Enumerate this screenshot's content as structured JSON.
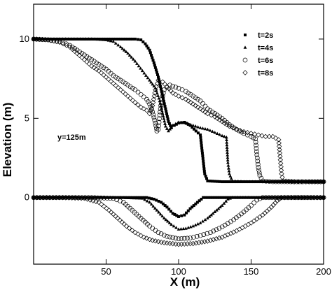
{
  "chart_data": {
    "type": "scatter",
    "xlabel": "X (m)",
    "ylabel": "Elevation (m)",
    "xlim": [
      0,
      200
    ],
    "ylim": [
      -4.2,
      12.2
    ],
    "xticks": [
      50,
      100,
      150,
      200
    ],
    "yticks": [
      0,
      5,
      10
    ],
    "grid": false,
    "legend_position": "top-right",
    "annotation": "y=125m",
    "series": [
      {
        "name": "t=2s",
        "marker": "square",
        "surface": [
          [
            0,
            10
          ],
          [
            10,
            10
          ],
          [
            20,
            10
          ],
          [
            30,
            10
          ],
          [
            40,
            10
          ],
          [
            50,
            10
          ],
          [
            60,
            10
          ],
          [
            70,
            10
          ],
          [
            74,
            9.95
          ],
          [
            77,
            9.7
          ],
          [
            80,
            9.3
          ],
          [
            83,
            8.5
          ],
          [
            86,
            7.6
          ],
          [
            89,
            6.4
          ],
          [
            91,
            5.6
          ],
          [
            93,
            4.8
          ],
          [
            95,
            4.4
          ],
          [
            97,
            4.55
          ],
          [
            100,
            4.7
          ],
          [
            104,
            4.75
          ],
          [
            108,
            4.55
          ],
          [
            112,
            4.2
          ],
          [
            115,
            3.95
          ],
          [
            117,
            2.3
          ],
          [
            118,
            1.5
          ],
          [
            120,
            1.05
          ],
          [
            130,
            1
          ],
          [
            140,
            1
          ],
          [
            150,
            1
          ],
          [
            160,
            1
          ],
          [
            170,
            1
          ],
          [
            180,
            1
          ],
          [
            190,
            1
          ],
          [
            200,
            1
          ]
        ],
        "bed": [
          [
            0,
            0
          ],
          [
            10,
            0
          ],
          [
            20,
            0
          ],
          [
            30,
            0
          ],
          [
            40,
            0
          ],
          [
            50,
            0
          ],
          [
            60,
            0
          ],
          [
            70,
            0
          ],
          [
            78,
            0
          ],
          [
            83,
            -0.1
          ],
          [
            88,
            -0.3
          ],
          [
            92,
            -0.6
          ],
          [
            96,
            -1
          ],
          [
            100,
            -1.2
          ],
          [
            104,
            -1.1
          ],
          [
            108,
            -0.7
          ],
          [
            113,
            -0.3
          ],
          [
            117,
            0
          ],
          [
            125,
            0
          ],
          [
            135,
            0
          ],
          [
            150,
            0
          ],
          [
            165,
            0
          ],
          [
            180,
            0
          ],
          [
            200,
            0
          ]
        ]
      },
      {
        "name": "t=4s",
        "marker": "triangle",
        "surface": [
          [
            0,
            10
          ],
          [
            10,
            10
          ],
          [
            20,
            10
          ],
          [
            30,
            10
          ],
          [
            40,
            10
          ],
          [
            50,
            9.95
          ],
          [
            55,
            9.85
          ],
          [
            60,
            9.5
          ],
          [
            65,
            9.1
          ],
          [
            70,
            8.6
          ],
          [
            75,
            8
          ],
          [
            80,
            7.4
          ],
          [
            84,
            6.9
          ],
          [
            87,
            6.1
          ],
          [
            89,
            5.3
          ],
          [
            91,
            4.5
          ],
          [
            93,
            4.2
          ],
          [
            96,
            4.55
          ],
          [
            100,
            4.75
          ],
          [
            105,
            4.7
          ],
          [
            110,
            4.55
          ],
          [
            115,
            4.4
          ],
          [
            120,
            4.3
          ],
          [
            125,
            4.1
          ],
          [
            130,
            3.9
          ],
          [
            133,
            3.8
          ],
          [
            134,
            2.2
          ],
          [
            135,
            1.5
          ],
          [
            137,
            1.05
          ],
          [
            145,
            1
          ],
          [
            155,
            1
          ],
          [
            165,
            1
          ],
          [
            175,
            1
          ],
          [
            190,
            1
          ],
          [
            200,
            1
          ]
        ],
        "bed": [
          [
            0,
            0
          ],
          [
            20,
            0
          ],
          [
            40,
            0
          ],
          [
            60,
            0
          ],
          [
            75,
            -0.05
          ],
          [
            80,
            -0.3
          ],
          [
            85,
            -0.8
          ],
          [
            90,
            -1.3
          ],
          [
            95,
            -1.7
          ],
          [
            100,
            -2
          ],
          [
            105,
            -1.95
          ],
          [
            110,
            -1.8
          ],
          [
            115,
            -1.6
          ],
          [
            120,
            -1.3
          ],
          [
            125,
            -0.9
          ],
          [
            130,
            -0.5
          ],
          [
            134,
            -0.1
          ],
          [
            137,
            0
          ],
          [
            150,
            0
          ],
          [
            170,
            0
          ],
          [
            200,
            0
          ]
        ]
      },
      {
        "name": "t=6s",
        "marker": "circle",
        "surface": [
          [
            0,
            10
          ],
          [
            10,
            9.95
          ],
          [
            20,
            9.8
          ],
          [
            25,
            9.6
          ],
          [
            30,
            9.3
          ],
          [
            35,
            9
          ],
          [
            40,
            8.7
          ],
          [
            45,
            8.4
          ],
          [
            50,
            8.1
          ],
          [
            55,
            7.7
          ],
          [
            60,
            7.4
          ],
          [
            65,
            7.1
          ],
          [
            70,
            6.8
          ],
          [
            74,
            6.5
          ],
          [
            78,
            6.2
          ],
          [
            80,
            5.9
          ],
          [
            82,
            5.4
          ],
          [
            84,
            4.7
          ],
          [
            85,
            4.2
          ],
          [
            86,
            4.3
          ],
          [
            87,
            5.2
          ],
          [
            88,
            6
          ],
          [
            90,
            6.8
          ],
          [
            94,
            7.1
          ],
          [
            100,
            6.9
          ],
          [
            105,
            6.7
          ],
          [
            110,
            6.4
          ],
          [
            115,
            6.1
          ],
          [
            120,
            5.6
          ],
          [
            125,
            5.3
          ],
          [
            130,
            5
          ],
          [
            135,
            4.6
          ],
          [
            140,
            4.3
          ],
          [
            145,
            4.05
          ],
          [
            150,
            3.85
          ],
          [
            153,
            3.7
          ],
          [
            154,
            2.7
          ],
          [
            155,
            1.9
          ],
          [
            156,
            1.4
          ],
          [
            158,
            1.05
          ],
          [
            165,
            1
          ],
          [
            175,
            1
          ],
          [
            190,
            1
          ],
          [
            200,
            1
          ]
        ],
        "bed": [
          [
            0,
            0
          ],
          [
            20,
            0
          ],
          [
            40,
            0
          ],
          [
            55,
            -0.05
          ],
          [
            62,
            -0.3
          ],
          [
            68,
            -0.8
          ],
          [
            74,
            -1.3
          ],
          [
            80,
            -1.8
          ],
          [
            86,
            -2.2
          ],
          [
            92,
            -2.45
          ],
          [
            100,
            -2.6
          ],
          [
            108,
            -2.55
          ],
          [
            115,
            -2.4
          ],
          [
            122,
            -2.2
          ],
          [
            130,
            -1.85
          ],
          [
            138,
            -1.4
          ],
          [
            145,
            -0.9
          ],
          [
            150,
            -0.5
          ],
          [
            154,
            -0.15
          ],
          [
            158,
            0
          ],
          [
            175,
            0
          ],
          [
            200,
            0
          ]
        ]
      },
      {
        "name": "t=8s",
        "marker": "diamond",
        "surface": [
          [
            0,
            10
          ],
          [
            10,
            9.95
          ],
          [
            18,
            9.8
          ],
          [
            25,
            9.5
          ],
          [
            30,
            9.1
          ],
          [
            35,
            8.7
          ],
          [
            40,
            8.3
          ],
          [
            45,
            8
          ],
          [
            50,
            7.6
          ],
          [
            55,
            7.2
          ],
          [
            60,
            6.8
          ],
          [
            65,
            6.4
          ],
          [
            70,
            6
          ],
          [
            74,
            5.7
          ],
          [
            78,
            5.5
          ],
          [
            80,
            5.3
          ],
          [
            82,
            5.8
          ],
          [
            84,
            6.8
          ],
          [
            86,
            7.4
          ],
          [
            89,
            7.3
          ],
          [
            92,
            7
          ],
          [
            96,
            6.6
          ],
          [
            100,
            6.4
          ],
          [
            105,
            6.2
          ],
          [
            110,
            5.9
          ],
          [
            115,
            5.6
          ],
          [
            120,
            5.3
          ],
          [
            125,
            5.1
          ],
          [
            130,
            4.8
          ],
          [
            135,
            4.5
          ],
          [
            140,
            4.3
          ],
          [
            145,
            4.15
          ],
          [
            150,
            4.05
          ],
          [
            155,
            3.95
          ],
          [
            160,
            3.85
          ],
          [
            165,
            3.85
          ],
          [
            169,
            3.65
          ],
          [
            170,
            2.6
          ],
          [
            171,
            1.5
          ],
          [
            172,
            1.05
          ],
          [
            180,
            1
          ],
          [
            190,
            1
          ],
          [
            200,
            1
          ]
        ],
        "bed": [
          [
            0,
            0
          ],
          [
            20,
            0
          ],
          [
            35,
            -0.05
          ],
          [
            45,
            -0.3
          ],
          [
            52,
            -0.8
          ],
          [
            58,
            -1.3
          ],
          [
            64,
            -1.8
          ],
          [
            70,
            -2.2
          ],
          [
            76,
            -2.5
          ],
          [
            82,
            -2.7
          ],
          [
            90,
            -2.85
          ],
          [
            100,
            -2.95
          ],
          [
            110,
            -2.9
          ],
          [
            120,
            -2.75
          ],
          [
            130,
            -2.5
          ],
          [
            140,
            -2.1
          ],
          [
            150,
            -1.6
          ],
          [
            158,
            -1.1
          ],
          [
            164,
            -0.6
          ],
          [
            168,
            -0.2
          ],
          [
            171,
            0
          ],
          [
            185,
            0
          ],
          [
            200,
            0
          ]
        ]
      }
    ]
  }
}
